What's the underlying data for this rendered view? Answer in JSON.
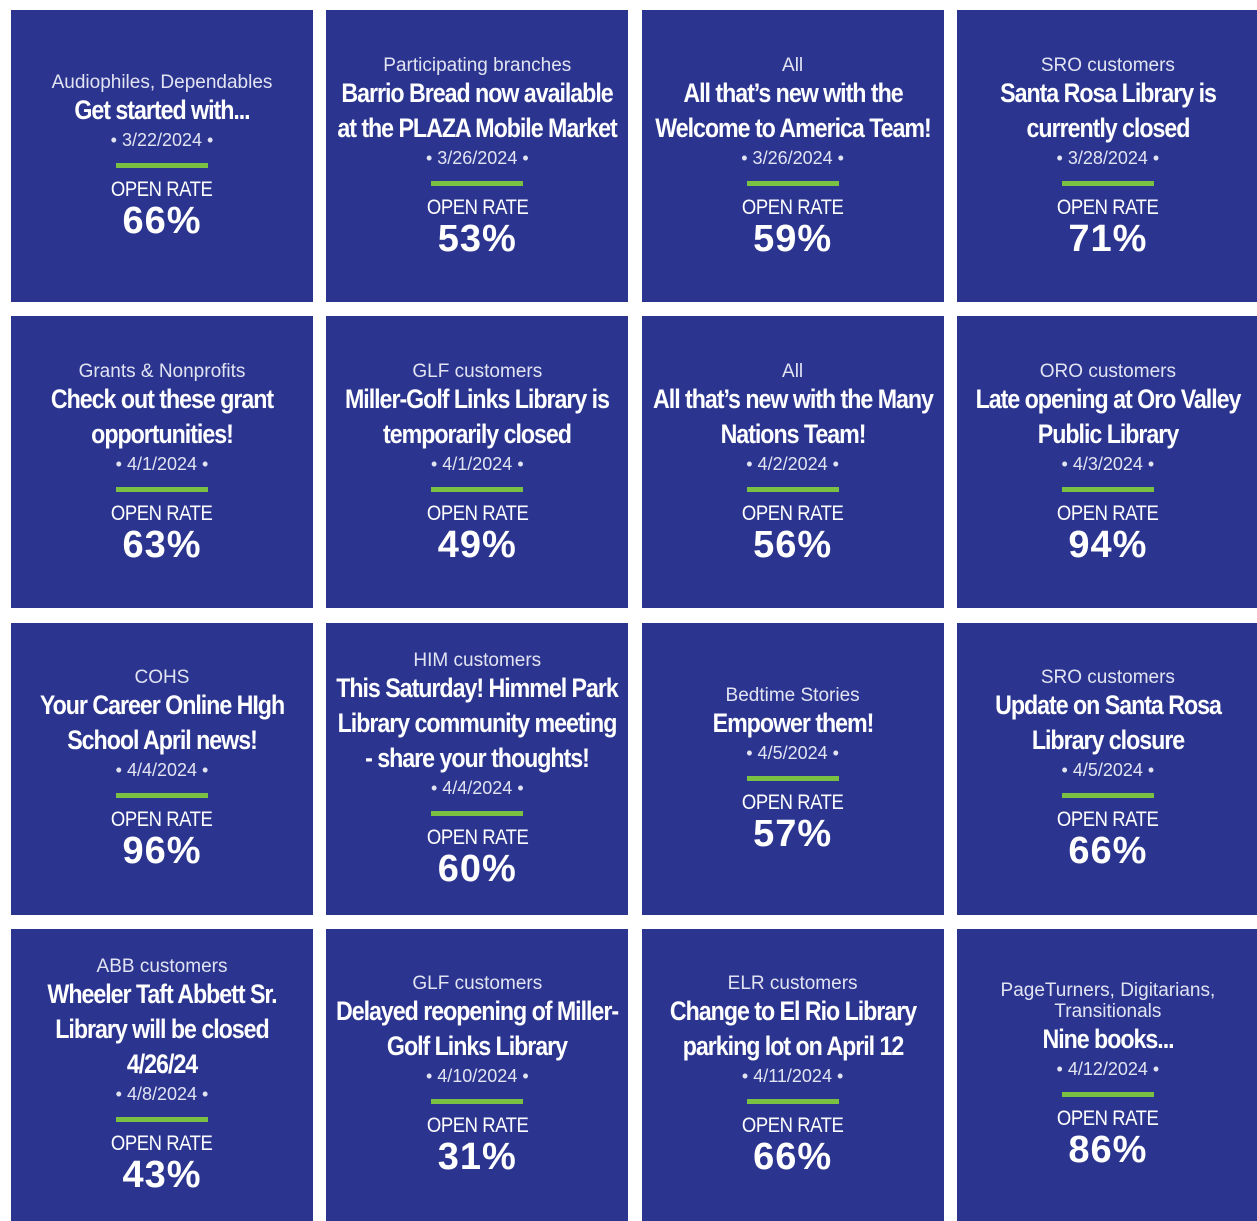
{
  "rate_label": "OPEN RATE",
  "cards": [
    {
      "audience": "Audiophiles, Dependables",
      "title": "Get started with...",
      "date": "• 3/22/2024 •",
      "rate": "66%"
    },
    {
      "audience": "Participating branches",
      "title": "Barrio Bread now available at the PLAZA Mobile Market",
      "date": "• 3/26/2024 •",
      "rate": "53%"
    },
    {
      "audience": "All",
      "title": "All that’s new with the Welcome to America Team!",
      "date": "• 3/26/2024 •",
      "rate": "59%"
    },
    {
      "audience": "SRO customers",
      "title": "Santa Rosa Library is currently closed",
      "date": "• 3/28/2024 •",
      "rate": "71%"
    },
    {
      "audience": "Grants & Nonprofits",
      "title": "Check out these grant opportunities!",
      "date": "• 4/1/2024 •",
      "rate": "63%"
    },
    {
      "audience": "GLF customers",
      "title": "Miller-Golf Links Library is temporarily closed",
      "date": "• 4/1/2024 •",
      "rate": "49%"
    },
    {
      "audience": "All",
      "title": "All that’s new with the Many Nations Team!",
      "date": "• 4/2/2024 •",
      "rate": "56%"
    },
    {
      "audience": "ORO customers",
      "title": "Late opening at Oro Valley Public Library",
      "date": "• 4/3/2024 •",
      "rate": "94%"
    },
    {
      "audience": "COHS",
      "title": "Your Career Online HIgh School April news!",
      "date": "• 4/4/2024 •",
      "rate": "96%"
    },
    {
      "audience": "HIM customers",
      "title": "This Saturday! Himmel Park Library community meeting - share your thoughts!",
      "date": "• 4/4/2024 •",
      "rate": "60%"
    },
    {
      "audience": "Bedtime Stories",
      "title": "Empower them!",
      "date": "• 4/5/2024 •",
      "rate": "57%"
    },
    {
      "audience": "SRO customers",
      "title": "Update on Santa Rosa Library closure",
      "date": "• 4/5/2024 •",
      "rate": "66%"
    },
    {
      "audience": "ABB customers",
      "title": "Wheeler Taft Abbett Sr. Library will be closed 4/26/24",
      "date": "• 4/8/2024 •",
      "rate": "43%"
    },
    {
      "audience": "GLF customers",
      "title": "Delayed reopening of Miller-Golf Links Library",
      "date": "• 4/10/2024 •",
      "rate": "31%"
    },
    {
      "audience": "ELR customers",
      "title": "Change to El Rio Library parking lot on April 12",
      "date": "• 4/11/2024 •",
      "rate": "66%"
    },
    {
      "audience": "PageTurners, Digitarians, Transitionals",
      "title": "Nine books...",
      "date": "• 4/12/2024 •",
      "rate": "86%"
    }
  ]
}
